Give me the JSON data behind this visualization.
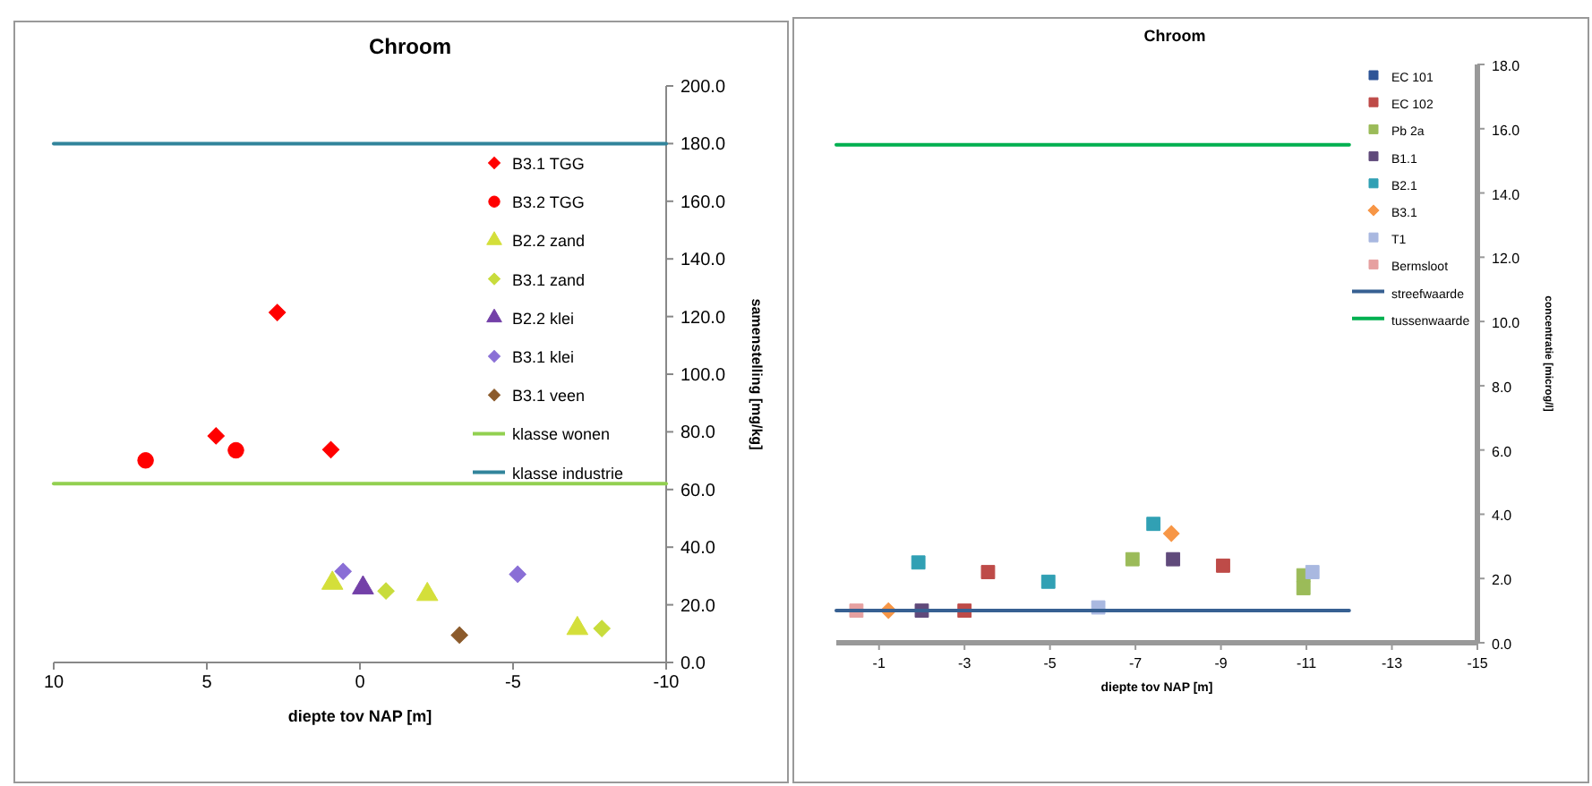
{
  "chart_data": [
    {
      "type": "scatter",
      "title": "Chroom",
      "xlabel": "diepte tov NAP [m]",
      "ylabel": "samenstelling [mg/kg]",
      "xlim": [
        10,
        -10
      ],
      "xticks": [
        10,
        5,
        0,
        -5,
        -10
      ],
      "ylim": [
        0,
        200
      ],
      "yticks": [
        {
          "value": 0,
          "label": "0.0"
        },
        {
          "value": 20,
          "label": "20.0"
        },
        {
          "value": 40,
          "label": "40.0"
        },
        {
          "value": 60,
          "label": "60.0"
        },
        {
          "value": 80,
          "label": "80.0"
        },
        {
          "value": 100,
          "label": "100.0"
        },
        {
          "value": 120,
          "label": "120.0"
        },
        {
          "value": 140,
          "label": "140.0"
        },
        {
          "value": 160,
          "label": "160.0"
        },
        {
          "value": 180,
          "label": "180.0"
        },
        {
          "value": 200,
          "label": "200.0"
        }
      ],
      "legend": "right",
      "series": [
        {
          "name": "B3.1  TGG",
          "color": "#ff0000",
          "marker": "diamond",
          "x": [
            2.7,
            4.7,
            0.95
          ],
          "values": [
            121.4,
            78.6,
            73.8
          ]
        },
        {
          "name": "B3.2 TGG",
          "color": "#ff0000",
          "marker": "circle",
          "x": [
            7.0,
            4.05
          ],
          "values": [
            70.1,
            73.6
          ]
        },
        {
          "name": "B2.2 zand",
          "color": "#d4df3a",
          "marker": "triangle",
          "x": [
            0.9,
            -2.2,
            -7.1
          ],
          "values": [
            27.5,
            23.6,
            11.8
          ]
        },
        {
          "name": "B3.1 zand",
          "color": "#c8dc3c",
          "marker": "diamond",
          "x": [
            -0.85,
            -7.9
          ],
          "values": [
            24.8,
            11.8
          ]
        },
        {
          "name": "B2.2 klei",
          "color": "#7340a8",
          "marker": "triangle",
          "x": [
            -0.1
          ],
          "values": [
            25.9
          ]
        },
        {
          "name": "B3.1 klei",
          "color": "#8a6fd6",
          "marker": "diamond",
          "x": [
            0.55,
            -5.15
          ],
          "values": [
            31.6,
            30.6
          ]
        },
        {
          "name": "B3.1 veen",
          "color": "#8b5a2b",
          "marker": "diamond",
          "x": [
            -3.25
          ],
          "values": [
            9.5
          ]
        },
        {
          "name": "klasse wonen",
          "type": "line",
          "color": "#92d050",
          "marker": "none",
          "x": [
            10,
            -10
          ],
          "values": [
            62,
            62
          ]
        },
        {
          "name": "klasse industrie",
          "type": "line",
          "color": "#31849b",
          "marker": "none",
          "x": [
            10,
            -10
          ],
          "values": [
            180,
            180
          ]
        }
      ]
    },
    {
      "type": "scatter",
      "title": "Chroom",
      "xlabel": "diepte tov NAP [m]",
      "ylabel": "concentratie [microg/l]",
      "xlim": [
        0,
        -15
      ],
      "xticks": [
        -1,
        -3,
        -5,
        -7,
        -9,
        -11,
        -13,
        -15
      ],
      "ylim": [
        0,
        18
      ],
      "yticks": [
        {
          "value": 0,
          "label": "0.0"
        },
        {
          "value": 2,
          "label": "2.0"
        },
        {
          "value": 4,
          "label": "4.0"
        },
        {
          "value": 6,
          "label": "6.0"
        },
        {
          "value": 8,
          "label": "8.0"
        },
        {
          "value": 10,
          "label": "10.0"
        },
        {
          "value": 12,
          "label": "12.0"
        },
        {
          "value": 14,
          "label": "14.0"
        },
        {
          "value": 16,
          "label": "16.0"
        },
        {
          "value": 18,
          "label": "18.0"
        }
      ],
      "legend": "top right",
      "series": [
        {
          "name": "EC 101",
          "color": "#2f5597",
          "marker": "square"
        },
        {
          "name": "EC 102",
          "color": "#be4b48",
          "marker": "square",
          "x": [
            -3.55,
            -9.05,
            -3.0
          ],
          "values": [
            2.2,
            2.4,
            1.0
          ]
        },
        {
          "name": "Pb 2a",
          "color": "#9bbb59",
          "marker": "square",
          "x": [
            -6.93,
            -10.93,
            -10.93
          ],
          "values": [
            2.6,
            2.1,
            1.7
          ]
        },
        {
          "name": "B1.1",
          "color": "#604a7b",
          "marker": "square",
          "x": [
            -2.0,
            -7.88
          ],
          "values": [
            1.0,
            2.6
          ]
        },
        {
          "name": "B2.1",
          "color": "#31a0b4",
          "marker": "square",
          "x": [
            -1.92,
            -4.96,
            -7.42
          ],
          "values": [
            2.5,
            1.9,
            3.7
          ]
        },
        {
          "name": "B3.1",
          "color": "#f79646",
          "marker": "diamond",
          "x": [
            -1.22,
            -7.84
          ],
          "values": [
            1.0,
            3.4
          ]
        },
        {
          "name": "T1",
          "color": "#a9b8e0",
          "marker": "square",
          "x": [
            -6.13,
            -11.14
          ],
          "values": [
            1.1,
            2.2
          ]
        },
        {
          "name": "Bermsloot",
          "color": "#e6a0a0",
          "marker": "square",
          "x": [
            -0.47
          ],
          "values": [
            1.0
          ]
        },
        {
          "name": "streefwaarde",
          "type": "line",
          "color": "#376092",
          "marker": "none",
          "x": [
            0,
            -12
          ],
          "values": [
            1.0,
            1.0
          ]
        },
        {
          "name": "tussenwaarde",
          "type": "line",
          "color": "#00b050",
          "marker": "none",
          "x": [
            0,
            -12
          ],
          "values": [
            15.5,
            15.5
          ]
        }
      ]
    }
  ]
}
